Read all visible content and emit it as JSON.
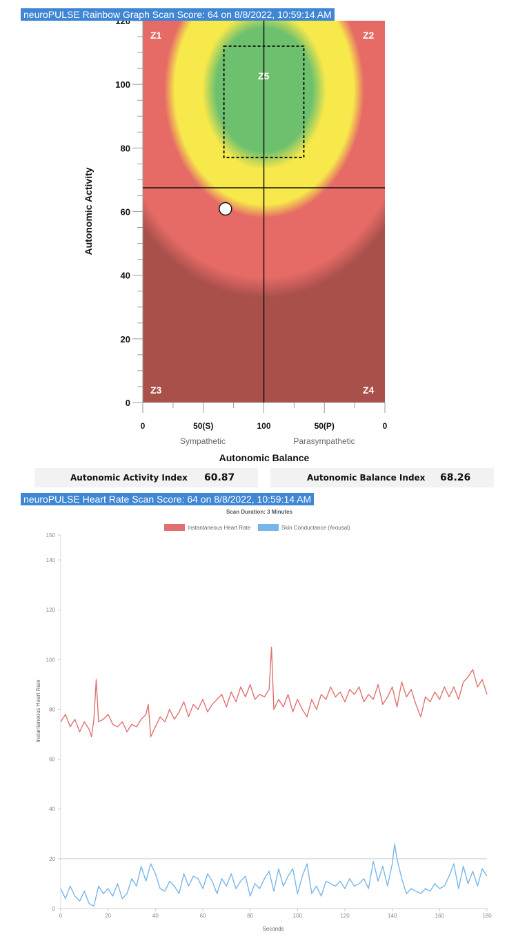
{
  "rainbow": {
    "header": "neuroPULSE Rainbow Graph Scan Score: 64 on 8/8/2022, 10:59:14 AM",
    "ylabel": "Autonomic Activity",
    "xlabel": "Autonomic Balance",
    "x_sub_left": "Sympathetic",
    "x_sub_right": "Parasympathetic",
    "zones": [
      "Z1",
      "Z2",
      "Z3",
      "Z4",
      "Z5"
    ],
    "y_ticks": [
      "0",
      "20",
      "40",
      "60",
      "80",
      "100",
      "120"
    ],
    "x_ticks": [
      "0",
      "50(S)",
      "100",
      "50(P)",
      "0"
    ],
    "colors": {
      "green": "#6cc06e",
      "yellow": "#f7e84b",
      "red": "#e66b66",
      "darkred": "#aa504b"
    }
  },
  "chart_data": [
    {
      "type": "scatter",
      "title": "neuroPULSE Rainbow Graph Scan Score: 64 on 8/8/2022, 10:59:14 AM",
      "xlabel": "Autonomic Balance",
      "ylabel": "Autonomic Activity",
      "xlim": [
        0,
        200
      ],
      "ylim": [
        0,
        120
      ],
      "x_tick_labels": [
        "0",
        "50(S)",
        "100",
        "50(P)",
        "0"
      ],
      "point": {
        "x": 68.26,
        "y": 60.87
      },
      "crosshair": {
        "x": 100,
        "y": 67.5
      },
      "zone5_box": {
        "x": [
          67,
          133
        ],
        "y": [
          77,
          112
        ]
      }
    },
    {
      "type": "line",
      "title": "neuroPULSE Heart Rate Scan Score: 64 on 8/8/2022, 10:59:14 AM",
      "subtitle": "Scan Duration: 3 Minutes",
      "xlabel": "Seconds",
      "ylabel": "Instantaneous Heart Rate",
      "xlim": [
        0,
        180
      ],
      "ylim": [
        0,
        150
      ],
      "x_ticks": [
        0,
        20,
        40,
        60,
        80,
        100,
        120,
        140,
        160,
        180
      ],
      "y_ticks": [
        0,
        20,
        40,
        60,
        80,
        100,
        120,
        140,
        150
      ],
      "reference_line": 20,
      "legend": "top-center",
      "series": [
        {
          "name": "Instantaneous Heart Rate",
          "color": "#e07070",
          "x": [
            0,
            2,
            4,
            6,
            8,
            10,
            12,
            13,
            14,
            15,
            16,
            18,
            20,
            22,
            24,
            26,
            28,
            30,
            32,
            34,
            36,
            37,
            38,
            40,
            42,
            44,
            46,
            48,
            50,
            52,
            54,
            56,
            58,
            60,
            62,
            64,
            66,
            68,
            70,
            72,
            74,
            76,
            78,
            80,
            82,
            84,
            86,
            88,
            89,
            90,
            92,
            94,
            96,
            98,
            100,
            102,
            104,
            106,
            108,
            110,
            112,
            114,
            116,
            118,
            120,
            122,
            124,
            126,
            128,
            130,
            132,
            134,
            136,
            138,
            140,
            142,
            144,
            146,
            148,
            150,
            152,
            154,
            156,
            158,
            160,
            162,
            164,
            166,
            168,
            170,
            172,
            174,
            176,
            178,
            180
          ],
          "y": [
            75,
            78,
            73,
            76,
            71,
            75,
            72,
            69,
            76,
            92,
            75,
            76,
            78,
            74,
            73,
            75,
            71,
            74,
            73,
            76,
            78,
            82,
            69,
            73,
            77,
            75,
            80,
            76,
            79,
            83,
            77,
            82,
            80,
            84,
            79,
            82,
            84,
            86,
            81,
            87,
            83,
            89,
            85,
            90,
            84,
            86,
            85,
            88,
            105,
            80,
            84,
            81,
            86,
            79,
            84,
            80,
            77,
            84,
            80,
            86,
            84,
            89,
            85,
            87,
            83,
            88,
            86,
            89,
            83,
            86,
            84,
            90,
            82,
            85,
            89,
            81,
            91,
            85,
            88,
            82,
            77,
            85,
            83,
            87,
            84,
            89,
            85,
            89,
            84,
            91,
            93,
            96,
            89,
            92,
            86
          ]
        },
        {
          "name": "Skin Conductance (Arousal)",
          "color": "#76b6ea",
          "x": [
            0,
            2,
            4,
            6,
            8,
            10,
            12,
            14,
            16,
            18,
            20,
            22,
            24,
            26,
            28,
            30,
            32,
            34,
            36,
            38,
            40,
            42,
            44,
            46,
            48,
            50,
            52,
            54,
            56,
            58,
            60,
            62,
            64,
            66,
            68,
            70,
            72,
            74,
            76,
            78,
            80,
            82,
            84,
            86,
            88,
            90,
            92,
            94,
            96,
            98,
            100,
            102,
            104,
            106,
            108,
            110,
            112,
            114,
            116,
            118,
            120,
            122,
            124,
            126,
            128,
            130,
            132,
            134,
            136,
            138,
            140,
            141,
            142,
            144,
            146,
            148,
            150,
            152,
            154,
            156,
            158,
            160,
            162,
            164,
            166,
            168,
            170,
            172,
            174,
            176,
            178,
            180
          ],
          "y": [
            8,
            4,
            9,
            5,
            3,
            7,
            2,
            1,
            9,
            6,
            8,
            5,
            10,
            4,
            6,
            12,
            9,
            17,
            11,
            18,
            14,
            8,
            7,
            11,
            9,
            6,
            14,
            9,
            13,
            12,
            8,
            14,
            11,
            6,
            12,
            9,
            14,
            8,
            11,
            13,
            5,
            10,
            8,
            12,
            15,
            7,
            16,
            9,
            13,
            16,
            6,
            13,
            18,
            6,
            9,
            5,
            11,
            10,
            9,
            11,
            8,
            12,
            9,
            10,
            12,
            8,
            19,
            11,
            17,
            9,
            18,
            26,
            20,
            12,
            6,
            8,
            7,
            6,
            8,
            7,
            10,
            8,
            9,
            13,
            18,
            8,
            17,
            10,
            15,
            9,
            16,
            13
          ]
        }
      ]
    }
  ],
  "hr": {
    "header": "neuroPULSE Heart Rate Scan Score: 64 on 8/8/2022, 10:59:14 AM",
    "subtitle": "Scan Duration: 3 Minutes",
    "legend_hr": "Instantaneous Heart Rate",
    "legend_sc": "Skin Conductance (Arousal)",
    "ylabel": "Instantaneous Heart Rate",
    "xlabel": "Seconds"
  },
  "indices": {
    "activity_label": "Autonomic Activity Index",
    "activity_value": "60.87",
    "balance_label": "Autonomic Balance Index",
    "balance_value": "68.26"
  }
}
